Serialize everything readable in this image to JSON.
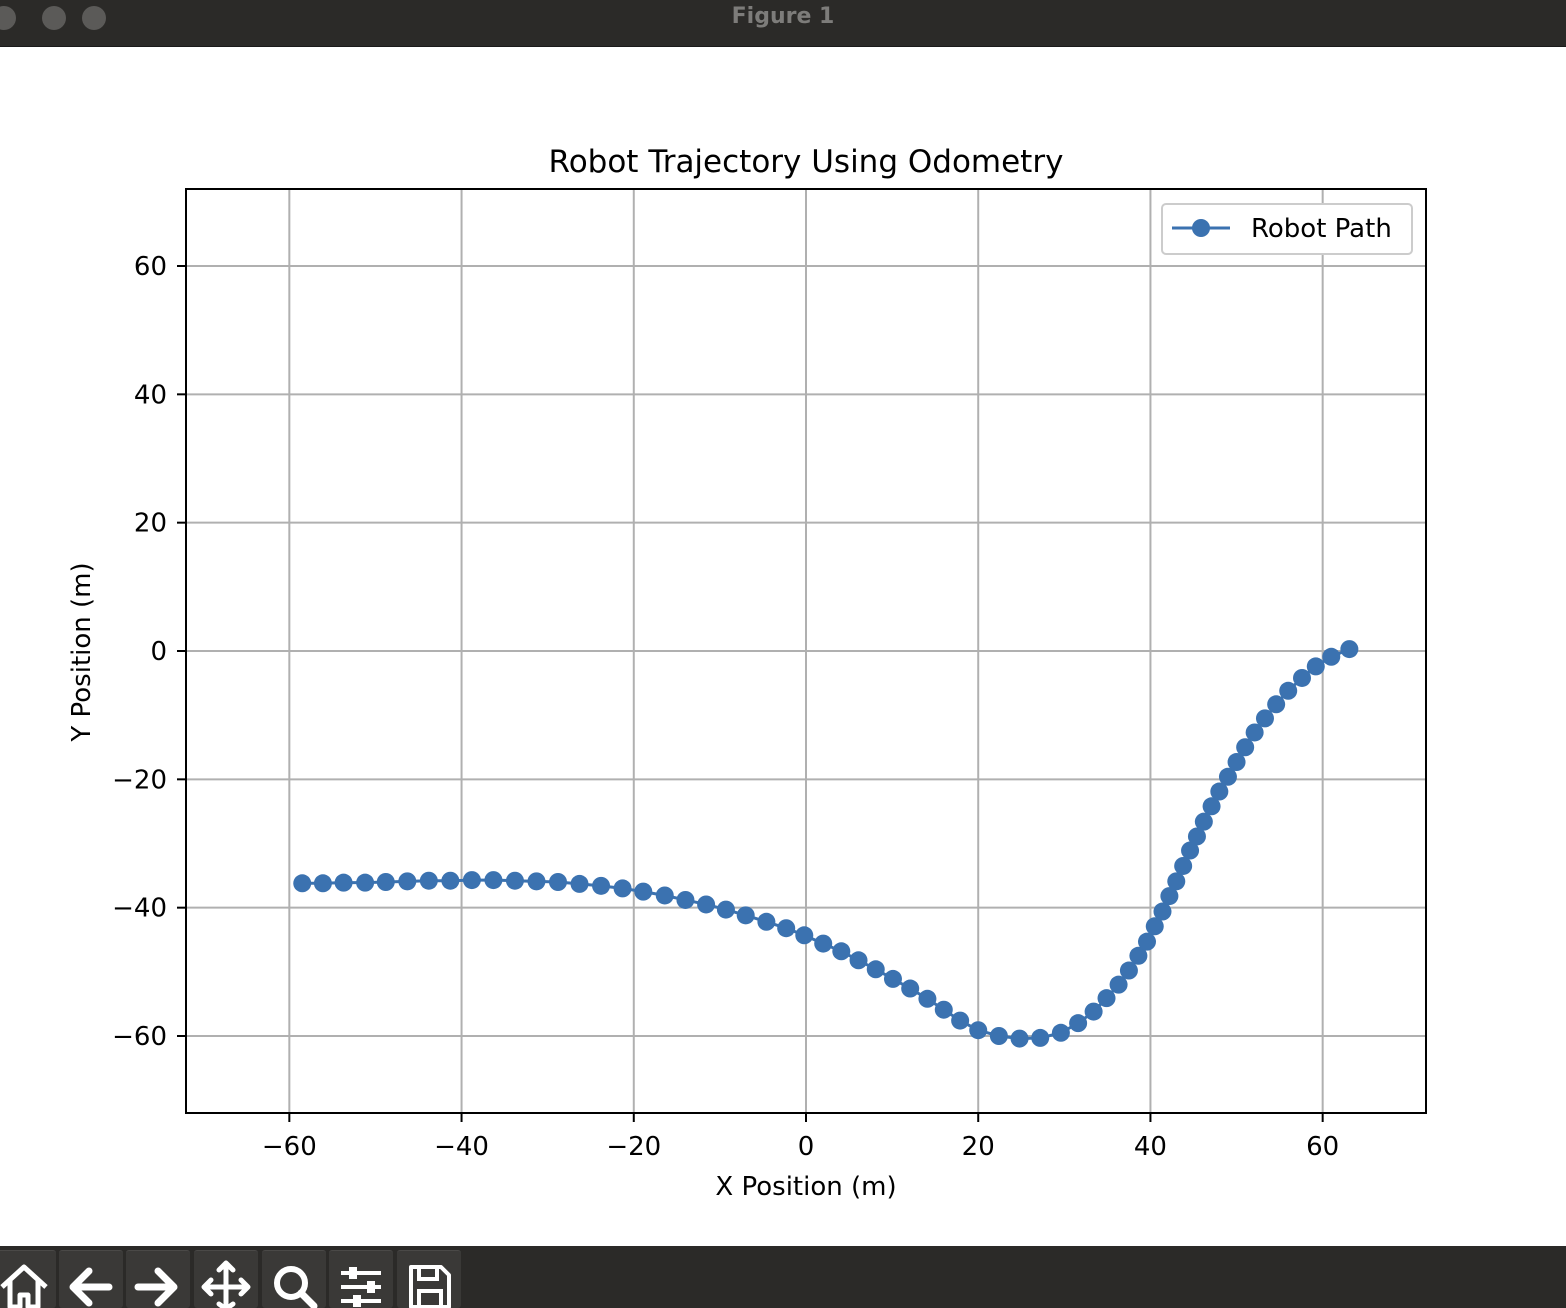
{
  "window": {
    "title": "Figure 1"
  },
  "toolbar": {
    "buttons": [
      {
        "name": "home-button",
        "icon": "home-icon"
      },
      {
        "name": "back-button",
        "icon": "arrow-left-icon"
      },
      {
        "name": "forward-button",
        "icon": "arrow-right-icon"
      },
      {
        "name": "pan-button",
        "icon": "move-icon"
      },
      {
        "name": "zoom-button",
        "icon": "magnifier-icon"
      },
      {
        "name": "configure-subplots-button",
        "icon": "sliders-icon"
      },
      {
        "name": "save-button",
        "icon": "floppy-disk-icon"
      }
    ]
  },
  "chart_data": {
    "type": "line",
    "title": "Robot Trajectory Using Odometry",
    "xlabel": "X Position (m)",
    "ylabel": "Y Position (m)",
    "xlim": [
      -72,
      72
    ],
    "ylim": [
      -72,
      72
    ],
    "xticks": [
      -60,
      -40,
      -20,
      0,
      20,
      40,
      60
    ],
    "yticks": [
      -60,
      -40,
      -20,
      0,
      20,
      40,
      60
    ],
    "xtick_labels": [
      "−60",
      "−40",
      "−20",
      "0",
      "20",
      "40",
      "60"
    ],
    "ytick_labels": [
      "−60",
      "−40",
      "−20",
      "0",
      "20",
      "40",
      "60"
    ],
    "grid": true,
    "legend_position": "top-right",
    "series": [
      {
        "name": "Robot Path",
        "color": "#3b72b0",
        "marker": "circle",
        "x": [
          -58.5,
          -56.1,
          -53.7,
          -51.2,
          -48.8,
          -46.3,
          -43.8,
          -41.3,
          -38.8,
          -36.3,
          -33.8,
          -31.3,
          -28.8,
          -26.3,
          -23.8,
          -21.3,
          -18.9,
          -16.4,
          -14.0,
          -11.6,
          -9.3,
          -7.0,
          -4.6,
          -2.3,
          -0.2,
          2.0,
          4.1,
          6.1,
          8.1,
          10.1,
          12.1,
          14.1,
          16.0,
          17.9,
          20.0,
          22.4,
          24.8,
          27.2,
          29.6,
          31.6,
          33.4,
          34.9,
          36.3,
          37.5,
          38.6,
          39.6,
          40.5,
          41.4,
          42.2,
          43.0,
          43.8,
          44.6,
          45.4,
          46.2,
          47.1,
          48.0,
          49.0,
          50.0,
          51.0,
          52.1,
          53.3,
          54.6,
          56.0,
          57.6,
          59.2,
          61.0,
          63.1
        ],
        "y": [
          -36.2,
          -36.2,
          -36.1,
          -36.1,
          -36.0,
          -35.9,
          -35.8,
          -35.8,
          -35.7,
          -35.7,
          -35.8,
          -35.9,
          -36.0,
          -36.3,
          -36.6,
          -37.0,
          -37.5,
          -38.1,
          -38.8,
          -39.5,
          -40.3,
          -41.2,
          -42.2,
          -43.2,
          -44.3,
          -45.6,
          -46.8,
          -48.2,
          -49.6,
          -51.1,
          -52.6,
          -54.2,
          -55.9,
          -57.6,
          -59.1,
          -60.0,
          -60.4,
          -60.3,
          -59.5,
          -58.0,
          -56.2,
          -54.1,
          -52.0,
          -49.8,
          -47.5,
          -45.3,
          -42.9,
          -40.6,
          -38.2,
          -35.9,
          -33.5,
          -31.1,
          -28.9,
          -26.6,
          -24.2,
          -21.9,
          -19.6,
          -17.3,
          -15.0,
          -12.7,
          -10.5,
          -8.3,
          -6.2,
          -4.2,
          -2.4,
          -0.9,
          0.3
        ]
      }
    ]
  }
}
